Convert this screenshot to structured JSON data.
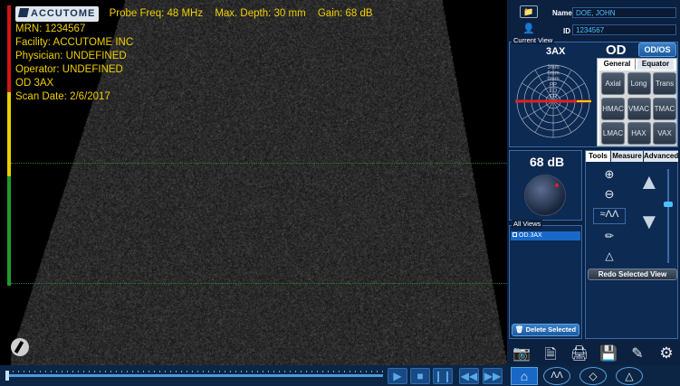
{
  "header": {
    "logo_text": "ACCUTOME",
    "probe_freq": "Probe Freq: 48 MHz",
    "max_depth": "Max. Depth: 30 mm",
    "gain": "Gain: 68 dB"
  },
  "patient_info": {
    "mrn": "MRN: 1234567",
    "facility": "Facility: ACCUTOME INC",
    "physician": "Physician: UNDEFINED",
    "operator": "Operator: UNDEFINED",
    "eye_view": "OD  3AX",
    "scan_date": "Scan Date: 2/6/2017"
  },
  "patient_form": {
    "name_label": "Name",
    "name_value": "DOE, JOHN",
    "id_label": "ID",
    "id_value": "1234567"
  },
  "current_view": {
    "section_label": "Current View",
    "view_code": "3AX",
    "eye": "OD",
    "eye_toggle": "OD/OS",
    "clock_labels": [
      "3mm",
      "6mm",
      "9mm",
      "PP",
      "EQ",
      "ER"
    ],
    "tabs": [
      "General",
      "Equator"
    ],
    "view_buttons": [
      "Axial",
      "Long",
      "Trans",
      "HMAC",
      "VMAC",
      "TMAC",
      "LMAC",
      "HAX",
      "VAX"
    ]
  },
  "gain_control": {
    "value": "68 dB"
  },
  "all_views": {
    "label": "All Views",
    "items": [
      {
        "label": "OD.3AX",
        "selected": true
      }
    ],
    "delete_label": "Delete Selected"
  },
  "tools": {
    "tabs": [
      "Tools",
      "Measure",
      "Advanced"
    ],
    "icons": [
      "zoom-in-icon",
      "zoom-out-icon",
      "waveform-icon",
      "eraser-icon",
      "probe-icon",
      "arrow-up-icon",
      "arrow-down-icon"
    ],
    "redo_label": "Redo Selected View"
  },
  "gain_bar": {
    "levels": [
      {
        "color": "#d21414",
        "fraction": 0.31
      },
      {
        "color": "#e8d000",
        "fraction": 0.3
      },
      {
        "color": "#1e9a2a",
        "fraction": 0.39
      }
    ]
  },
  "playback": {
    "position": 0.0,
    "buttons": [
      "play-icon",
      "stop-icon",
      "pause-icon",
      "rewind-icon",
      "fast-forward-icon"
    ]
  },
  "bottom_toolbar": {
    "icons": [
      "camera-icon",
      "document-icon",
      "print-icon",
      "save-icon",
      "pen-icon",
      "gear-icon"
    ],
    "mode_icons": [
      "home-icon",
      "a-scan-icon",
      "b-scan-icon",
      "u-scan-icon"
    ]
  },
  "colors": {
    "overlay_text": "#f0d000",
    "panel_bg": "#0c2040",
    "accent": "#2d6bb0"
  }
}
